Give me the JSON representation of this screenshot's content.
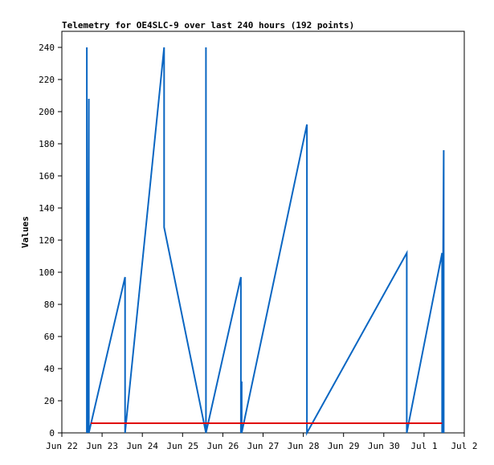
{
  "chart_data": {
    "type": "line",
    "title": "Telemetry for OE4SLC-9 over last 240 hours (192 points)",
    "xlabel": "",
    "ylabel": "Values",
    "xlim": [
      "Jun 22",
      "Jul 2"
    ],
    "ylim": [
      0,
      250
    ],
    "x_ticks": [
      "Jun 22",
      "Jun 23",
      "Jun 24",
      "Jun 25",
      "Jun 26",
      "Jun 27",
      "Jun 28",
      "Jun 29",
      "Jun 30",
      "Jul 1",
      "Jul 2"
    ],
    "y_ticks": [
      0,
      20,
      40,
      60,
      80,
      100,
      120,
      140,
      160,
      180,
      200,
      220,
      240
    ],
    "grid": false,
    "legend": "none",
    "x_unit": "days since Jun 22 00:00",
    "series": [
      {
        "color": "#0a66c2",
        "points": [
          [
            0.62,
            0
          ],
          [
            0.62,
            240
          ],
          [
            0.62,
            0
          ],
          [
            0.64,
            97
          ],
          [
            0.64,
            0
          ],
          [
            0.67,
            208
          ],
          [
            0.67,
            0
          ],
          [
            1.57,
            97
          ],
          [
            1.57,
            0
          ],
          [
            2.54,
            240
          ],
          [
            2.54,
            128
          ],
          [
            3.58,
            0
          ],
          [
            3.58,
            240
          ],
          [
            3.58,
            0
          ],
          [
            4.45,
            97
          ],
          [
            4.45,
            0
          ],
          [
            4.47,
            32
          ],
          [
            4.47,
            0
          ],
          [
            6.09,
            192
          ],
          [
            6.09,
            0
          ],
          [
            8.57,
            112
          ],
          [
            8.57,
            0
          ],
          [
            9.45,
            112
          ],
          [
            9.45,
            0
          ],
          [
            9.49,
            176
          ],
          [
            9.49,
            0
          ]
        ]
      },
      {
        "color": "#e00000",
        "points": [
          [
            0.72,
            6
          ],
          [
            9.45,
            6
          ]
        ]
      }
    ]
  }
}
